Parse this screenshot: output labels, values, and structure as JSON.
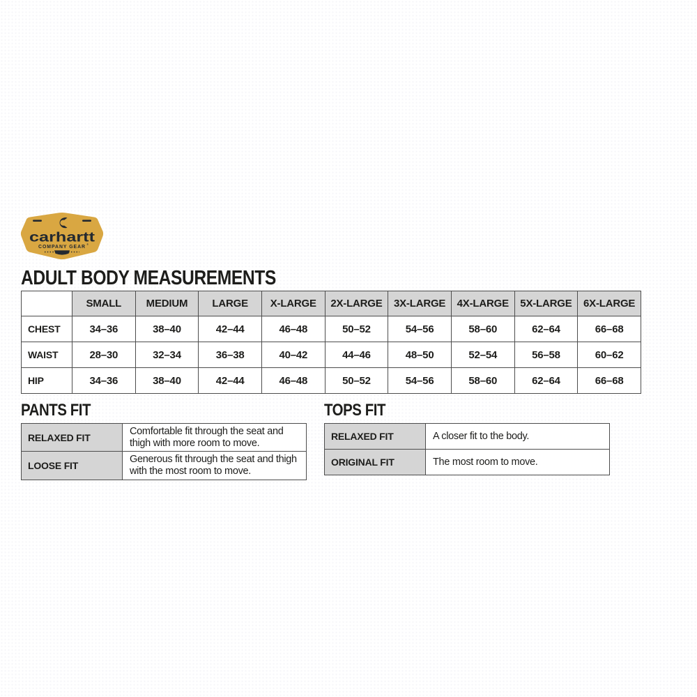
{
  "title": "ADULT BODY MEASUREMENTS",
  "logo": {
    "brand": "carhartt",
    "tagline": "COMPANY GEAR",
    "trademark": "®",
    "icons": [
      "carhartt-c-icon",
      "ribbon-icon",
      "dash-decorations"
    ]
  },
  "colors": {
    "badge_gold": "#d9a742",
    "dark": "#232930",
    "header_bg": "#d5d5d5",
    "border": "#4c4c4c",
    "text": "#1d1d1b"
  },
  "measurements_table": {
    "columns": [
      "",
      "SMALL",
      "MEDIUM",
      "LARGE",
      "X-LARGE",
      "2X-LARGE",
      "3X-LARGE",
      "4X-LARGE",
      "5X-LARGE",
      "6X-LARGE"
    ],
    "rows": [
      {
        "label": "CHEST",
        "values": [
          "34–36",
          "38–40",
          "42–44",
          "46–48",
          "50–52",
          "54–56",
          "58–60",
          "62–64",
          "66–68"
        ]
      },
      {
        "label": "WAIST",
        "values": [
          "28–30",
          "32–34",
          "36–38",
          "40–42",
          "44–46",
          "48–50",
          "52–54",
          "56–58",
          "60–62"
        ]
      },
      {
        "label": "HIP",
        "values": [
          "34–36",
          "38–40",
          "42–44",
          "46–48",
          "50–52",
          "54–56",
          "58–60",
          "62–64",
          "66–68"
        ]
      }
    ]
  },
  "pants_fit": {
    "heading": "PANTS FIT",
    "rows": [
      {
        "label": "RELAXED FIT",
        "description": "Comfortable fit through the seat and thigh with more room to move."
      },
      {
        "label": "LOOSE FIT",
        "description": "Generous fit through the seat and thigh with the most room to move."
      }
    ]
  },
  "tops_fit": {
    "heading": "TOPS FIT",
    "rows": [
      {
        "label": "RELAXED FIT",
        "description": "A closer fit to the body."
      },
      {
        "label": "ORIGINAL FIT",
        "description": "The most room to move."
      }
    ]
  }
}
